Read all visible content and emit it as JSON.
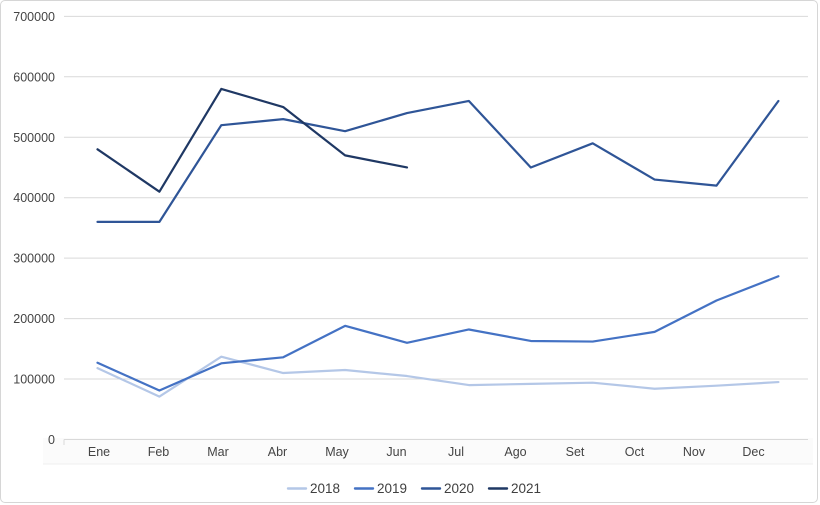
{
  "chart_data": {
    "type": "line",
    "title": "",
    "xlabel": "",
    "ylabel": "",
    "categories": [
      "Ene",
      "Feb",
      "Mar",
      "Abr",
      "May",
      "Jun",
      "Jul",
      "Ago",
      "Set",
      "Oct",
      "Nov",
      "Dec"
    ],
    "series": [
      {
        "name": "2018",
        "color": "#b4c7e7",
        "values": [
          118000,
          71000,
          137000,
          110000,
          115000,
          105000,
          90000,
          92000,
          94000,
          84000,
          89000,
          95000
        ]
      },
      {
        "name": "2019",
        "color": "#4472c4",
        "values": [
          127000,
          81000,
          126000,
          136000,
          188000,
          160000,
          182000,
          163000,
          162000,
          178000,
          230000,
          270000
        ]
      },
      {
        "name": "2020",
        "color": "#2f5597",
        "values": [
          360000,
          360000,
          520000,
          530000,
          510000,
          540000,
          560000,
          450000,
          490000,
          430000,
          420000,
          560000
        ]
      },
      {
        "name": "2021",
        "color": "#1f3864",
        "values": [
          480000,
          410000,
          580000,
          550000,
          470000,
          450000,
          null,
          null,
          null,
          null,
          null,
          null
        ]
      }
    ],
    "ylim": [
      0,
      700000
    ],
    "ytick_step": 100000,
    "ytick_labels": [
      "0",
      "100000",
      "200000",
      "300000",
      "400000",
      "500000",
      "600000",
      "700000"
    ],
    "grid": "horizontal",
    "legend_position": "bottom",
    "legend_labels": [
      "2018",
      "2019",
      "2020",
      "2021"
    ],
    "colors": {
      "gridline": "#d9d9d9",
      "axis_line": "#d9d9d9",
      "axis_text": "#444444",
      "legend_text": "#404040",
      "frame_border": "#d6d6d6",
      "background": "#ffffff"
    }
  }
}
